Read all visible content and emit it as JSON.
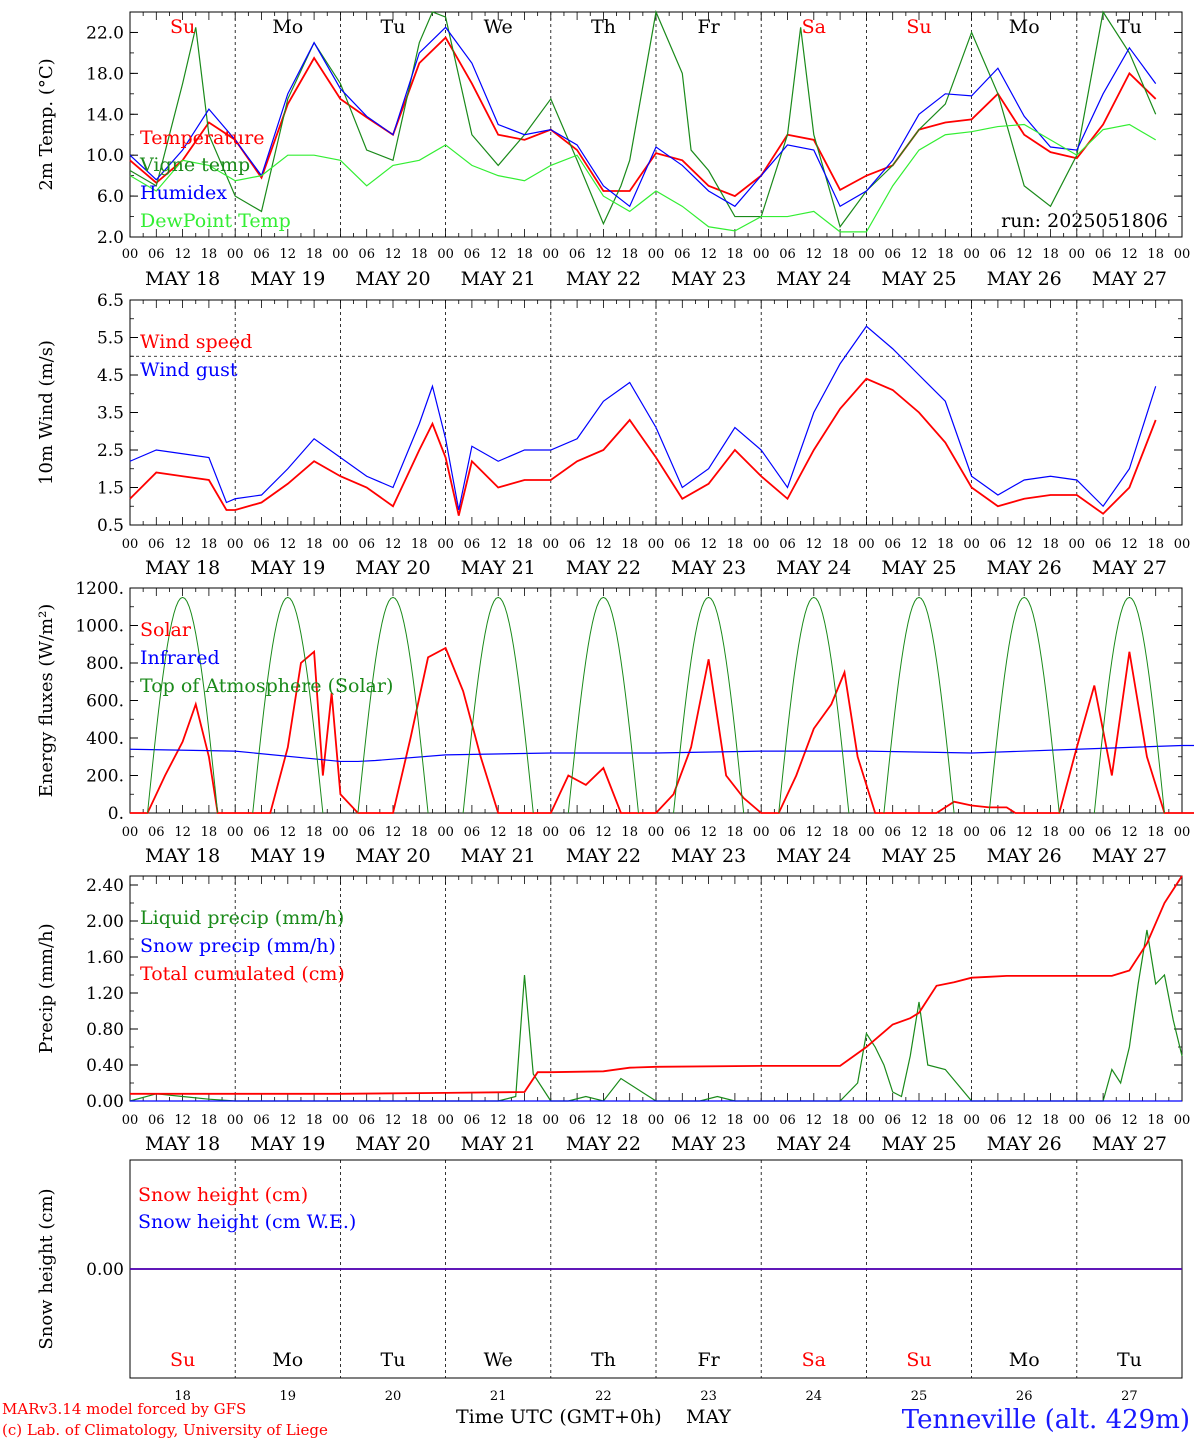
{
  "colors": {
    "red": "#ff0000",
    "green": "#1a8a1a",
    "lightgreen": "#33ee33",
    "blue": "#0000ff",
    "black": "#000000",
    "station": "#1a1aff"
  },
  "days": {
    "labels": [
      "MAY 18",
      "MAY 19",
      "MAY 20",
      "MAY 21",
      "MAY 22",
      "MAY 23",
      "MAY 24",
      "MAY 25",
      "MAY 26",
      "MAY 27"
    ],
    "weekdays": [
      "Su",
      "Mo",
      "Tu",
      "We",
      "Th",
      "Fr",
      "Sa",
      "Su",
      "Mo",
      "Tu"
    ],
    "weekday_colors": [
      "#ff0000",
      "#000000",
      "#000000",
      "#000000",
      "#000000",
      "#000000",
      "#ff0000",
      "#ff0000",
      "#000000",
      "#000000"
    ],
    "hour_ticks": [
      "00",
      "06",
      "12",
      "18"
    ],
    "final_tick": "00",
    "day_numbers": [
      "18",
      "19",
      "20",
      "21",
      "22",
      "23",
      "24",
      "25",
      "26",
      "27"
    ]
  },
  "footer": {
    "model_line1": "MARv3.14 model forced by GFS",
    "model_line2": "(c) Lab. of Climatology, University of Liege",
    "xlabel": "Time UTC (GMT+0h)",
    "month": "MAY",
    "station": "Tenneville (alt. 429m)"
  },
  "chart_data": [
    {
      "type": "line",
      "ylabel": "2m Temp. (°C)",
      "ylim": [
        2.0,
        24.0
      ],
      "yticks": [
        "2.0",
        "6.0",
        "10.0",
        "14.0",
        "18.0",
        "22.0"
      ],
      "annotation": "run: 2025051806",
      "series": [
        {
          "name": "Temperature",
          "color": "red",
          "x": [
            0,
            6,
            12,
            18,
            24,
            30,
            36,
            42,
            48,
            54,
            60,
            66,
            72,
            78,
            84,
            90,
            96,
            102,
            108,
            114,
            120,
            126,
            132,
            138,
            144,
            150,
            156,
            162,
            168,
            174,
            180,
            186,
            192,
            198,
            204,
            210,
            216,
            222,
            228,
            234
          ],
          "values": [
            9.5,
            7.3,
            9.5,
            13.2,
            11.5,
            7.8,
            15,
            19.5,
            15.5,
            13.7,
            12,
            19,
            21.5,
            17,
            12,
            11.5,
            12.5,
            10.5,
            6.5,
            6.5,
            10.2,
            9.5,
            7,
            6,
            8,
            12,
            11.5,
            6.6,
            8,
            9,
            12.5,
            13.2,
            13.5,
            16,
            12,
            10.3,
            9.7,
            13,
            18,
            15.5
          ]
        },
        {
          "name": "Vigne temp",
          "color": "green",
          "x": [
            0,
            6,
            12,
            15,
            18,
            24,
            30,
            36,
            42,
            48,
            54,
            60,
            66,
            69,
            72,
            78,
            84,
            90,
            96,
            102,
            108,
            112,
            114,
            120,
            126,
            128,
            132,
            138,
            144,
            150,
            153,
            156,
            162,
            168,
            174,
            180,
            186,
            192,
            198,
            204,
            210,
            216,
            222,
            228,
            234
          ],
          "values": [
            8.5,
            7,
            17,
            22.5,
            12,
            6,
            4.5,
            15.5,
            21,
            17,
            10.5,
            9.5,
            21,
            24,
            23.5,
            12,
            9,
            12,
            15.5,
            9.5,
            3.3,
            7,
            9.5,
            24,
            18,
            10.5,
            8.5,
            4,
            4,
            12,
            22.5,
            12,
            3,
            6.5,
            9,
            12.5,
            15,
            22,
            16,
            7,
            5,
            10,
            24,
            20,
            14
          ]
        },
        {
          "name": "Humidex",
          "color": "blue",
          "x": [
            0,
            6,
            12,
            18,
            24,
            30,
            36,
            42,
            48,
            54,
            60,
            66,
            72,
            78,
            84,
            90,
            96,
            102,
            108,
            114,
            120,
            126,
            132,
            138,
            144,
            150,
            156,
            162,
            168,
            174,
            180,
            186,
            192,
            198,
            204,
            210,
            216,
            222,
            228,
            234
          ],
          "values": [
            10,
            7.6,
            10.5,
            14.5,
            11.5,
            8,
            16,
            21,
            16.5,
            13.8,
            12,
            20,
            22.5,
            19,
            13,
            12,
            12.5,
            11,
            7,
            5,
            10.8,
            9,
            6.5,
            5,
            8,
            11,
            10.5,
            5,
            6.5,
            9.5,
            14,
            16,
            15.8,
            18.5,
            13.8,
            10.8,
            10.5,
            16,
            20.5,
            17
          ]
        },
        {
          "name": "DewPoint Temp",
          "color": "lightgreen",
          "x": [
            0,
            6,
            12,
            18,
            24,
            30,
            36,
            42,
            48,
            54,
            60,
            66,
            72,
            78,
            84,
            90,
            96,
            102,
            108,
            114,
            120,
            126,
            132,
            138,
            144,
            150,
            156,
            162,
            168,
            174,
            180,
            186,
            192,
            198,
            204,
            210,
            216,
            222,
            228,
            234
          ],
          "values": [
            8,
            6.5,
            9.5,
            9,
            7.5,
            8,
            10,
            10,
            9.5,
            7,
            9,
            9.5,
            11,
            9,
            8,
            7.5,
            9,
            10,
            6,
            4.5,
            6.5,
            5,
            3,
            2.6,
            4,
            4,
            4.5,
            2.5,
            2.5,
            7,
            10.5,
            12,
            12.3,
            12.8,
            13,
            11.5,
            10,
            12.5,
            13,
            11.5
          ]
        }
      ]
    },
    {
      "type": "line",
      "ylabel": "10m Wind (m/s)",
      "ylim": [
        0.5,
        6.5
      ],
      "yticks": [
        "0.5",
        "1.5",
        "2.5",
        "3.5",
        "4.5",
        "5.5",
        "6.5"
      ],
      "reference_line": 5.0,
      "series": [
        {
          "name": "Wind speed",
          "color": "red",
          "x": [
            0,
            6,
            12,
            18,
            22,
            24,
            30,
            36,
            42,
            48,
            54,
            60,
            66,
            69,
            72,
            75,
            78,
            84,
            90,
            96,
            102,
            108,
            114,
            120,
            126,
            132,
            138,
            144,
            150,
            156,
            162,
            168,
            174,
            180,
            186,
            192,
            198,
            204,
            210,
            216,
            222,
            228,
            234
          ],
          "values": [
            1.2,
            1.9,
            1.8,
            1.7,
            0.9,
            0.9,
            1.1,
            1.6,
            2.2,
            1.8,
            1.5,
            1.0,
            2.5,
            3.2,
            2.3,
            0.75,
            2.2,
            1.5,
            1.7,
            1.7,
            2.2,
            2.5,
            3.3,
            2.3,
            1.2,
            1.6,
            2.5,
            1.8,
            1.2,
            2.5,
            3.6,
            4.4,
            4.1,
            3.5,
            2.7,
            1.5,
            1.0,
            1.2,
            1.3,
            1.3,
            0.8,
            1.5,
            3.3
          ]
        },
        {
          "name": "Wind gust",
          "color": "blue",
          "x": [
            0,
            6,
            12,
            18,
            22,
            24,
            30,
            36,
            42,
            48,
            54,
            60,
            66,
            69,
            72,
            75,
            78,
            84,
            90,
            96,
            102,
            108,
            114,
            120,
            126,
            132,
            138,
            144,
            150,
            156,
            162,
            168,
            174,
            180,
            186,
            192,
            198,
            204,
            210,
            216,
            222,
            228,
            234
          ],
          "values": [
            2.2,
            2.5,
            2.4,
            2.3,
            1.1,
            1.2,
            1.3,
            2.0,
            2.8,
            2.3,
            1.8,
            1.5,
            3.2,
            4.2,
            2.8,
            0.9,
            2.6,
            2.2,
            2.5,
            2.5,
            2.8,
            3.8,
            4.3,
            3.1,
            1.5,
            2.0,
            3.1,
            2.5,
            1.5,
            3.5,
            4.8,
            5.8,
            5.2,
            4.5,
            3.8,
            1.8,
            1.3,
            1.7,
            1.8,
            1.7,
            1.0,
            2.0,
            4.2
          ]
        }
      ]
    },
    {
      "type": "line",
      "ylabel": "Energy fluxes (W/m²)",
      "ylim": [
        0,
        1200
      ],
      "yticks": [
        "0.",
        "200.",
        "400.",
        "600.",
        "800.",
        "1000.",
        "1200."
      ],
      "series": [
        {
          "name": "Solar",
          "color": "red",
          "x": [
            0,
            4,
            8,
            12,
            15,
            18,
            20,
            24,
            28,
            32,
            36,
            39,
            42,
            44,
            46,
            48,
            52,
            56,
            60,
            64,
            68,
            72,
            76,
            80,
            84,
            88,
            92,
            96,
            100,
            104,
            108,
            112,
            114,
            116,
            118,
            120,
            124,
            128,
            132,
            136,
            140,
            144,
            148,
            152,
            156,
            160,
            163,
            166,
            170,
            176,
            180,
            184,
            188,
            192,
            196,
            200,
            202,
            204,
            206,
            208,
            212,
            216,
            220,
            224,
            228,
            232,
            236,
            240,
            244,
            248,
            252,
            256,
            260,
            264,
            268,
            272,
            276,
            280,
            284,
            288,
            292,
            296,
            300,
            304,
            308,
            310,
            312,
            316,
            320,
            324,
            328,
            332,
            336,
            340,
            346,
            352,
            356,
            360
          ],
          "values": [
            0,
            0,
            200,
            380,
            580,
            300,
            0,
            0,
            0,
            0,
            350,
            800,
            860,
            200,
            640,
            100,
            0,
            0,
            0,
            400,
            830,
            880,
            650,
            300,
            0,
            0,
            0,
            0,
            200,
            150,
            240,
            0,
            0,
            0,
            0,
            0,
            100,
            350,
            820,
            200,
            80,
            0,
            0,
            200,
            450,
            580,
            750,
            300,
            0,
            0,
            0,
            0,
            60,
            40,
            30,
            30,
            0,
            0,
            0,
            0,
            0,
            350,
            680,
            200,
            860,
            300,
            0,
            0,
            0,
            0,
            380,
            600,
            870,
            500,
            150,
            0,
            0,
            0,
            0,
            0,
            0,
            0,
            0,
            0,
            0,
            0,
            0,
            0,
            0,
            240,
            100,
            40,
            10,
            0,
            0,
            0,
            0,
            0
          ]
        },
        {
          "name": "Infrared",
          "color": "blue",
          "x": [
            0,
            24,
            48,
            52,
            56,
            72,
            96,
            120,
            144,
            168,
            192,
            216,
            240,
            264,
            288,
            312,
            336,
            360
          ],
          "values": [
            340,
            330,
            275,
            275,
            280,
            310,
            320,
            320,
            330,
            330,
            320,
            340,
            360,
            360,
            300,
            330,
            340,
            355
          ]
        },
        {
          "name": "Top of Atmosphere (Solar)",
          "color": "green",
          "x": [
            4,
            8,
            12,
            16,
            20
          ],
          "values": [
            0,
            700,
            1140,
            700,
            0
          ]
        }
      ]
    },
    {
      "type": "line",
      "ylabel": "Precip (mm/h)",
      "ylim": [
        0.0,
        2.5
      ],
      "yticks": [
        "0.00",
        "0.40",
        "0.80",
        "1.20",
        "1.60",
        "2.00",
        "2.40"
      ],
      "series": [
        {
          "name": "Liquid precip (mm/h)",
          "color": "green",
          "x": [
            0,
            6,
            12,
            18,
            24,
            36,
            48,
            60,
            72,
            80,
            84,
            88,
            90,
            92,
            96,
            100,
            104,
            108,
            112,
            120,
            126,
            130,
            134,
            138,
            144,
            150,
            156,
            162,
            166,
            168,
            170,
            172,
            174,
            176,
            178,
            180,
            182,
            186,
            192,
            198,
            204,
            210,
            216,
            222,
            224,
            226,
            228,
            230,
            232,
            234,
            236,
            238,
            240
          ],
          "values": [
            0,
            0.08,
            0.05,
            0.02,
            0,
            0,
            0,
            0,
            0,
            0,
            0,
            0.05,
            1.4,
            0.3,
            0,
            0,
            0.05,
            0,
            0.25,
            0,
            0,
            0,
            0.05,
            0,
            0,
            0,
            0,
            0,
            0.2,
            0.75,
            0.6,
            0.4,
            0.1,
            0.05,
            0.5,
            1.1,
            0.4,
            0.35,
            0,
            0,
            0,
            0,
            0,
            0,
            0.35,
            0.2,
            0.6,
            1.3,
            1.9,
            1.3,
            1.4,
            0.9,
            0.5
          ]
        },
        {
          "name": "Snow precip (mm/h)",
          "color": "blue",
          "x": [
            0,
            240
          ],
          "values": [
            0,
            0
          ]
        },
        {
          "name": "Total cumulated (cm)",
          "color": "red",
          "x": [
            0,
            24,
            48,
            72,
            90,
            93,
            96,
            108,
            114,
            120,
            144,
            162,
            168,
            174,
            178,
            180,
            184,
            188,
            192,
            196,
            200,
            204,
            208,
            212,
            216,
            220,
            224,
            228,
            232,
            236,
            240
          ],
          "values": [
            0.08,
            0.08,
            0.08,
            0.09,
            0.1,
            0.32,
            0.32,
            0.33,
            0.37,
            0.38,
            0.39,
            0.39,
            0.6,
            0.85,
            0.92,
            0.98,
            1.28,
            1.32,
            1.37,
            1.38,
            1.39,
            1.39,
            1.39,
            1.39,
            1.39,
            1.39,
            1.39,
            1.45,
            1.75,
            2.2,
            2.5
          ]
        }
      ]
    },
    {
      "type": "line",
      "ylabel": "Snow height (cm)",
      "ylim": [
        -1,
        1
      ],
      "yticks": [
        "0.00"
      ],
      "series": [
        {
          "name": "Snow height (cm)",
          "color": "red",
          "x": [
            0,
            240
          ],
          "values": [
            0,
            0
          ]
        },
        {
          "name": "Snow height (cm W.E.)",
          "color": "blue",
          "x": [
            0,
            240
          ],
          "values": [
            0,
            0
          ]
        }
      ]
    }
  ]
}
